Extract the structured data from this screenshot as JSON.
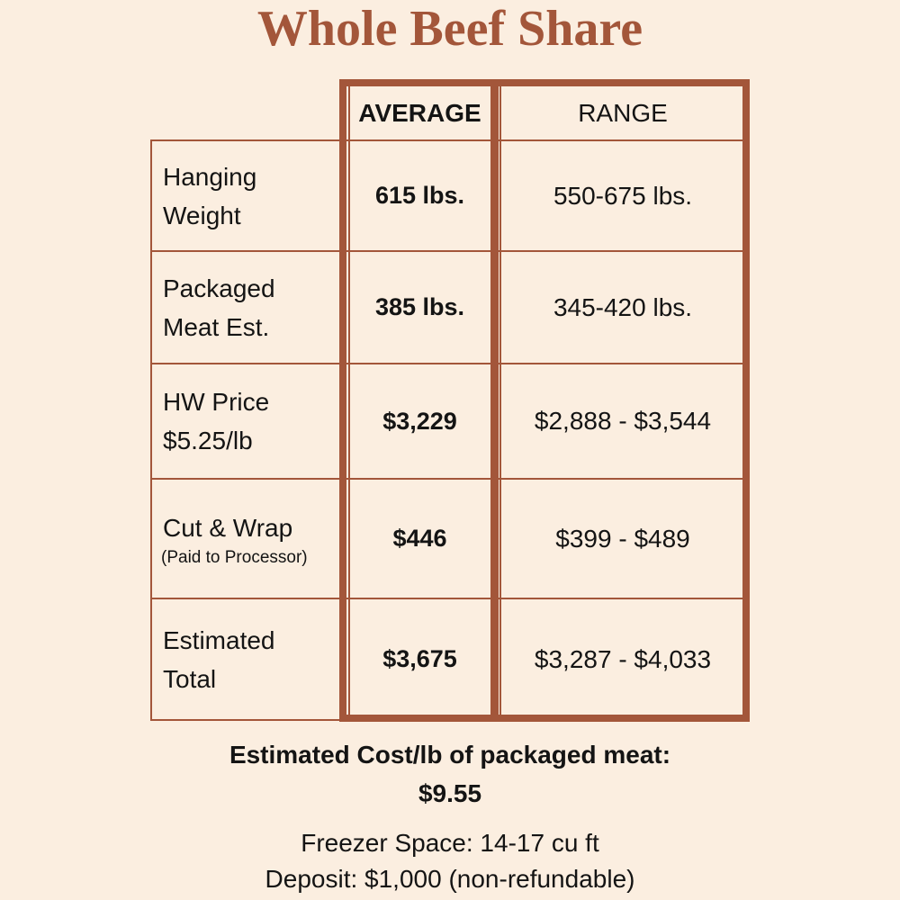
{
  "title": "Whole Beef Share",
  "table": {
    "headers": {
      "average": "AVERAGE",
      "range": "RANGE"
    },
    "rows": [
      {
        "label_line1": "Hanging",
        "label_line2": "Weight",
        "label_sub": "",
        "average": "615 lbs.",
        "range": "550-675 lbs."
      },
      {
        "label_line1": "Packaged",
        "label_line2": "Meat Est.",
        "label_sub": "",
        "average": "385 lbs.",
        "range": "345-420 lbs."
      },
      {
        "label_line1": "HW Price",
        "label_line2": "$5.25/lb",
        "label_sub": "",
        "average": "$3,229",
        "range": "$2,888 - $3,544"
      },
      {
        "label_line1": "Cut & Wrap",
        "label_line2": "",
        "label_sub": "(Paid to Processor)",
        "average": "$446",
        "range": "$399 - $489"
      },
      {
        "label_line1": "Estimated",
        "label_line2": "Total",
        "label_sub": "",
        "average": "$3,675",
        "range": "$3,287 - $4,033"
      }
    ]
  },
  "summary": {
    "label": "Estimated Cost/lb of packaged meat:",
    "value": "$9.55"
  },
  "notes": {
    "freezer": "Freezer Space: 14-17 cu ft",
    "deposit": "Deposit: $1,000 (non-refundable)"
  },
  "colors": {
    "background": "#fbeee0",
    "accent": "#a3563a",
    "text": "#141414"
  }
}
